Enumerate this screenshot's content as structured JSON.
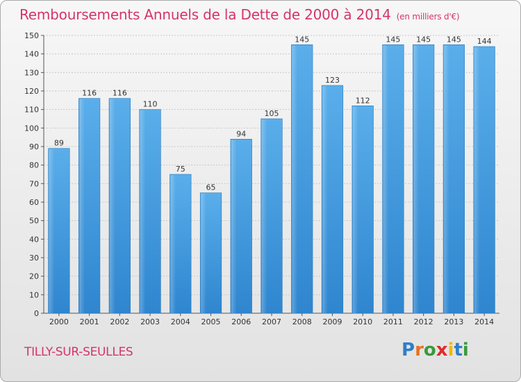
{
  "header": {
    "title": "Remboursements Annuels de la Dette de 2000 à 2014",
    "units": "(en milliers d'€)"
  },
  "footer": {
    "place": "TILLY-SUR-SEULLES",
    "logo": "Proxiti"
  },
  "colors": {
    "title": "#d6336c",
    "bar": "#4a9fe0",
    "logo_letters": [
      "#2e7fc8",
      "#e8731e",
      "#3b9a3b",
      "#e22b2b",
      "#f2b705",
      "#2e7fc8",
      "#3b9a3b"
    ]
  },
  "chart_data": {
    "type": "bar",
    "title": "Remboursements Annuels de la Dette de 2000 à 2014",
    "xlabel": "",
    "ylabel": "",
    "ylim": [
      0,
      150
    ],
    "ytick_step": 10,
    "grid": true,
    "categories": [
      "2000",
      "2001",
      "2002",
      "2003",
      "2004",
      "2005",
      "2006",
      "2007",
      "2008",
      "2009",
      "2010",
      "2011",
      "2012",
      "2013",
      "2014"
    ],
    "values": [
      89,
      116,
      116,
      110,
      75,
      65,
      94,
      105,
      145,
      123,
      112,
      145,
      145,
      145,
      144
    ],
    "data_labels": [
      "89",
      "116",
      "116",
      "110",
      "75",
      "65",
      "94",
      "105",
      "145",
      "123",
      "112",
      "145",
      "145",
      "145",
      "144"
    ]
  }
}
